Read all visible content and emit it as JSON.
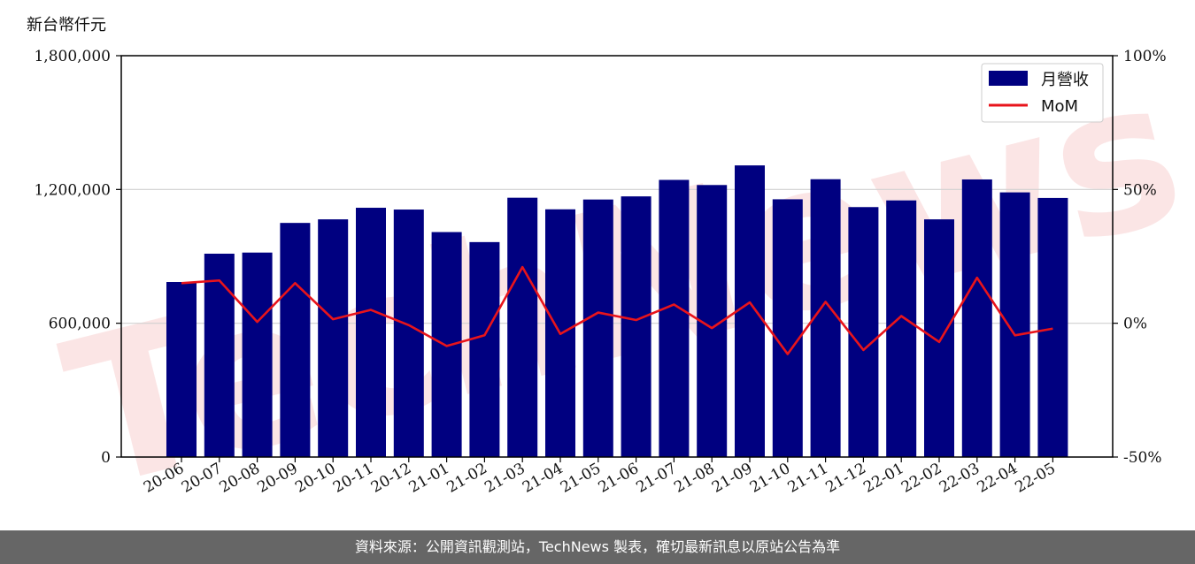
{
  "unit_label": "新台幣仟元",
  "watermark": "TechNews",
  "footer_text": "資料來源：公開資訊觀測站，TechNews 製表，確切最新訊息以原站公告為準",
  "colors": {
    "bar": "#000080",
    "line": "#e8141b",
    "grid": "#d0d0d0",
    "footer_bg": "#666666"
  },
  "chart_data": {
    "type": "bar",
    "categories": [
      "20-06",
      "20-07",
      "20-08",
      "20-09",
      "20-10",
      "20-11",
      "20-12",
      "21-01",
      "21-02",
      "21-03",
      "21-04",
      "21-05",
      "21-06",
      "21-07",
      "21-08",
      "21-09",
      "21-10",
      "21-11",
      "21-12",
      "22-01",
      "22-02",
      "22-03",
      "22-04",
      "22-05"
    ],
    "series": [
      {
        "name": "月營收",
        "type": "bar",
        "axis": "left",
        "values": [
          785000,
          912000,
          917000,
          1050000,
          1066000,
          1118000,
          1110000,
          1009000,
          964000,
          1163000,
          1111000,
          1155000,
          1169000,
          1243000,
          1220000,
          1308000,
          1156000,
          1246000,
          1121000,
          1151000,
          1066000,
          1245000,
          1187000,
          1162000
        ]
      },
      {
        "name": "MoM",
        "type": "line",
        "axis": "right",
        "values": [
          15,
          16,
          0.5,
          15,
          1.5,
          5,
          -0.7,
          -8.5,
          -4.5,
          21,
          -4,
          4,
          1.2,
          7,
          -1.8,
          7.8,
          -11.5,
          8,
          -10,
          2.7,
          -7,
          17,
          -4.5,
          -2
        ]
      }
    ],
    "y_left": {
      "ylim": [
        0,
        1800000
      ],
      "ticks": [
        "0",
        "600,000",
        "1,200,000",
        "1,800,000"
      ],
      "tick_values": [
        0,
        600000,
        1200000,
        1800000
      ]
    },
    "y_right": {
      "ylim": [
        -50,
        100
      ],
      "ticks": [
        "-50%",
        "0%",
        "50%",
        "100%"
      ],
      "tick_values": [
        -50,
        0,
        50,
        100
      ]
    },
    "grid": "horizontal",
    "legend": "top-right",
    "xlabel": "",
    "ylabel": ""
  }
}
